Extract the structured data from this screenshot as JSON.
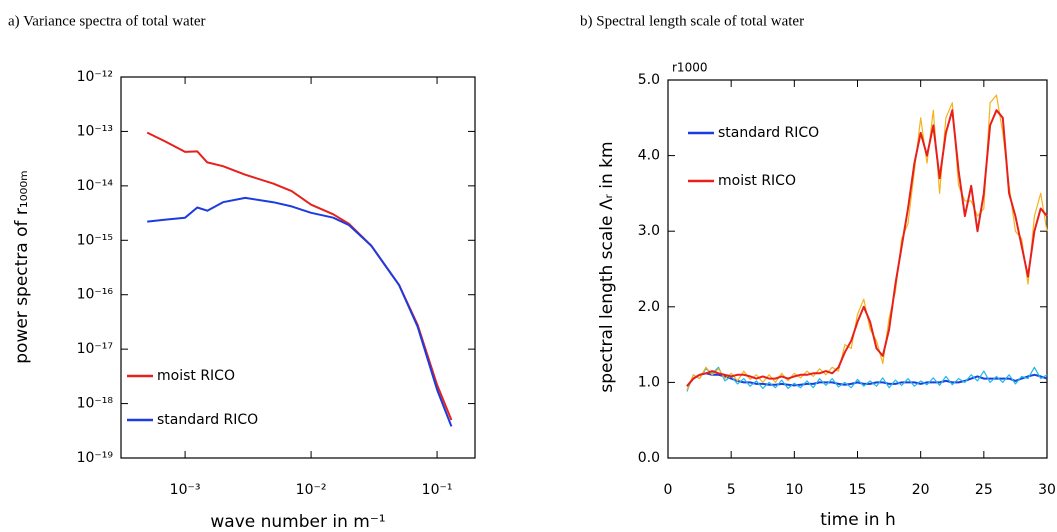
{
  "chart_data": [
    {
      "type": "line",
      "title": "a) Variance spectra of total water",
      "xlabel": "wave number in m⁻¹",
      "ylabel": "power spectra of r₁₀₀₀ₘ",
      "xlog": true,
      "ylog": true,
      "legend": "lower left",
      "xlim": [
        0.00031,
        0.2
      ],
      "ylim": [
        1e-19,
        1e-12
      ],
      "xticks": [
        {
          "value": 0.001,
          "label": "10⁻³"
        },
        {
          "value": 0.01,
          "label": "10⁻²"
        },
        {
          "value": 0.1,
          "label": "10⁻¹"
        }
      ],
      "yticks": [
        {
          "value": 1e-19,
          "label": "10⁻¹⁹"
        },
        {
          "value": 1e-18,
          "label": "10⁻¹⁸"
        },
        {
          "value": 1e-17,
          "label": "10⁻¹⁷"
        },
        {
          "value": 1e-16,
          "label": "10⁻¹⁶"
        },
        {
          "value": 1e-15,
          "label": "10⁻¹⁵"
        },
        {
          "value": 1e-14,
          "label": "10⁻¹⁴"
        },
        {
          "value": 1e-13,
          "label": "10⁻¹³"
        },
        {
          "value": 1e-12,
          "label": "10⁻¹²"
        }
      ],
      "series": [
        {
          "name": "moist RICO",
          "color": "#e8201c",
          "x": [
            0.0005,
            0.0007,
            0.001,
            0.00125,
            0.0015,
            0.002,
            0.003,
            0.005,
            0.007,
            0.01,
            0.015,
            0.02,
            0.03,
            0.05,
            0.07,
            0.1,
            0.13
          ],
          "values": [
            9.5e-14,
            6.5e-14,
            4.2e-14,
            4.3e-14,
            2.7e-14,
            2.3e-14,
            1.6e-14,
            1.1e-14,
            8e-15,
            4.5e-15,
            3e-15,
            2e-15,
            8e-16,
            1.5e-16,
            2.8e-17,
            2.2e-18,
            5e-19
          ]
        },
        {
          "name": "standard RICO",
          "color": "#1c3ce0",
          "x": [
            0.0005,
            0.0007,
            0.001,
            0.00125,
            0.0015,
            0.002,
            0.003,
            0.005,
            0.007,
            0.01,
            0.015,
            0.02,
            0.03,
            0.05,
            0.07,
            0.1,
            0.13
          ],
          "values": [
            2.2e-15,
            2.4e-15,
            2.6e-15,
            4e-15,
            3.5e-15,
            5e-15,
            6e-15,
            5e-15,
            4.2e-15,
            3.2e-15,
            2.6e-15,
            1.9e-15,
            8e-16,
            1.5e-16,
            2.6e-17,
            1.8e-18,
            3.8e-19
          ]
        }
      ]
    },
    {
      "type": "line",
      "title": "b) Spectral length scale of total water",
      "annotation": "r1000",
      "xlabel": "time in h",
      "ylabel": "spectral length scale Λᵣ in km",
      "legend": "upper left",
      "xlim": [
        0,
        30
      ],
      "ylim": [
        0,
        5
      ],
      "xticks": [
        0,
        5,
        10,
        15,
        20,
        25,
        30
      ],
      "yticks": [
        {
          "value": 0,
          "label": "0.0"
        },
        {
          "value": 1,
          "label": "1.0"
        },
        {
          "value": 2,
          "label": "2.0"
        },
        {
          "value": 3,
          "label": "3.0"
        },
        {
          "value": 4,
          "label": "4.0"
        },
        {
          "value": 5,
          "label": "5.0"
        }
      ],
      "x": [
        1.5,
        2,
        2.5,
        3,
        3.5,
        4,
        4.5,
        5,
        5.5,
        6,
        6.5,
        7,
        7.5,
        8,
        8.5,
        9,
        9.5,
        10,
        10.5,
        11,
        11.5,
        12,
        12.5,
        13,
        13.5,
        14,
        14.5,
        15,
        15.5,
        16,
        16.5,
        17,
        17.5,
        18,
        18.5,
        19,
        19.5,
        20,
        20.5,
        21,
        21.5,
        22,
        22.5,
        23,
        23.5,
        24,
        24.5,
        25,
        25.5,
        26,
        26.5,
        27,
        27.5,
        28,
        28.5,
        29,
        29.5,
        30
      ],
      "series": [
        {
          "name": "standard RICO",
          "color": "#1c3ce0",
          "values": [
            0.95,
            1.05,
            1.1,
            1.12,
            1.1,
            1.1,
            1.08,
            1.05,
            1.02,
            1.0,
            1.0,
            0.98,
            0.98,
            0.97,
            0.97,
            0.98,
            0.97,
            0.96,
            0.97,
            0.98,
            0.98,
            1.0,
            1.0,
            1.0,
            0.98,
            0.97,
            0.98,
            1.0,
            0.98,
            0.98,
            1.0,
            1.0,
            0.98,
            0.98,
            1.0,
            1.0,
            1.0,
            0.98,
            1.0,
            1.0,
            1.0,
            1.02,
            1.0,
            1.0,
            1.02,
            1.05,
            1.08,
            1.05,
            1.05,
            1.05,
            1.05,
            1.05,
            1.02,
            1.05,
            1.08,
            1.1,
            1.08,
            1.05
          ]
        },
        {
          "color": "#20b8e8",
          "values": [
            0.88,
            1.1,
            1.05,
            1.18,
            1.12,
            1.2,
            1.02,
            1.08,
            0.98,
            1.05,
            0.95,
            1.02,
            0.92,
            1.0,
            0.93,
            1.03,
            0.92,
            0.99,
            0.93,
            1.02,
            0.93,
            1.05,
            0.96,
            1.05,
            0.94,
            1.0,
            0.93,
            1.04,
            0.95,
            1.02,
            0.95,
            1.06,
            0.93,
            1.03,
            0.96,
            1.05,
            0.95,
            1.02,
            0.97,
            1.06,
            0.96,
            1.08,
            0.97,
            1.05,
            1.0,
            1.1,
            1.02,
            1.15,
            1.0,
            1.08,
            1.0,
            1.1,
            0.98,
            1.08,
            1.05,
            1.2,
            1.05,
            1.1
          ]
        },
        {
          "color": "#f5b21a",
          "values": [
            0.9,
            1.1,
            1.05,
            1.2,
            1.1,
            1.18,
            1.05,
            1.12,
            1.02,
            1.15,
            1.04,
            1.1,
            1.0,
            1.1,
            1.0,
            1.12,
            1.02,
            1.12,
            1.06,
            1.15,
            1.08,
            1.18,
            1.1,
            1.2,
            1.15,
            1.5,
            1.45,
            1.9,
            2.1,
            1.7,
            1.55,
            1.25,
            1.85,
            2.2,
            2.9,
            3.1,
            3.8,
            4.5,
            3.9,
            4.6,
            3.5,
            4.5,
            4.7,
            3.6,
            3.4,
            3.4,
            3.2,
            3.3,
            4.7,
            4.8,
            4.3,
            3.6,
            3.0,
            2.9,
            2.3,
            3.2,
            3.5,
            3.0
          ]
        },
        {
          "name": "moist RICO",
          "color": "#e8201c",
          "values": [
            0.95,
            1.05,
            1.1,
            1.12,
            1.15,
            1.12,
            1.1,
            1.08,
            1.1,
            1.1,
            1.08,
            1.05,
            1.08,
            1.05,
            1.05,
            1.08,
            1.05,
            1.08,
            1.1,
            1.1,
            1.12,
            1.12,
            1.15,
            1.12,
            1.2,
            1.4,
            1.55,
            1.8,
            2.0,
            1.8,
            1.45,
            1.35,
            1.7,
            2.3,
            2.8,
            3.3,
            3.9,
            4.3,
            4.0,
            4.4,
            3.7,
            4.3,
            4.6,
            3.8,
            3.2,
            3.6,
            3.0,
            3.5,
            4.4,
            4.6,
            4.5,
            3.5,
            3.2,
            2.8,
            2.4,
            3.0,
            3.3,
            3.2
          ]
        }
      ]
    }
  ]
}
